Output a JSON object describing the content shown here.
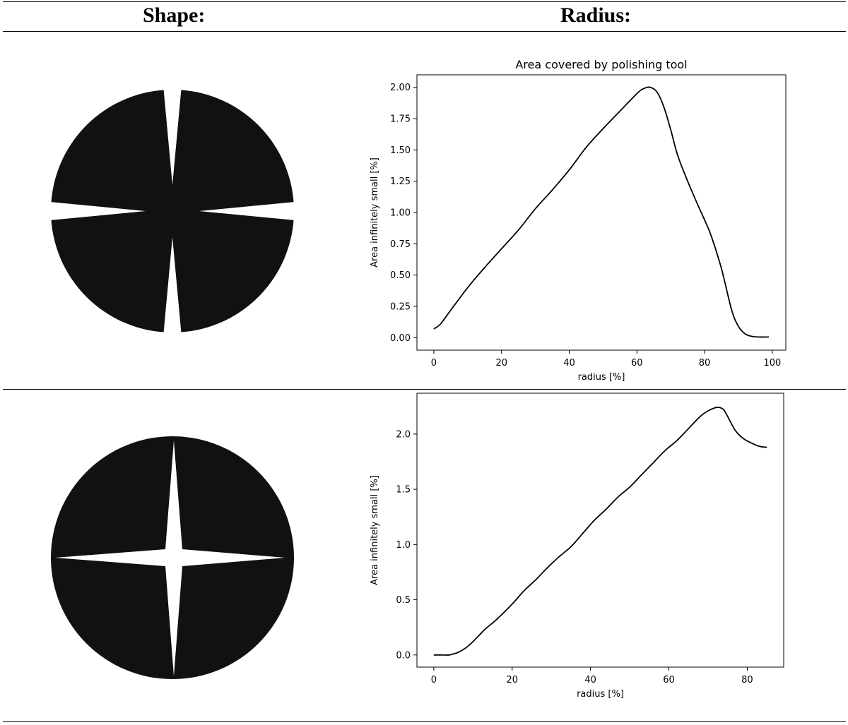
{
  "header": {
    "shape_label": "Shape:",
    "radius_label": "Radius:"
  },
  "rows": [
    {
      "shape_icon": "cross-slot-polishing-tool-icon"
    },
    {
      "shape_icon": "four-point-star-slot-polishing-tool-icon"
    }
  ],
  "chart_data": [
    {
      "type": "line",
      "title": "Area covered by polishing tool",
      "xlabel": "radius [%]",
      "ylabel": "Area infinitely small [%]",
      "xlim": [
        -5,
        104
      ],
      "ylim": [
        -0.1,
        2.1
      ],
      "xticks": [
        0,
        20,
        40,
        60,
        80,
        100
      ],
      "yticks": [
        0.0,
        0.25,
        0.5,
        0.75,
        1.0,
        1.25,
        1.5,
        1.75,
        2.0
      ],
      "ytick_labels": [
        "0.00",
        "0.25",
        "0.50",
        "0.75",
        "1.00",
        "1.25",
        "1.50",
        "1.75",
        "2.00"
      ],
      "grid": false,
      "line_color": "#000000",
      "x": [
        0,
        2,
        5,
        10,
        15,
        20,
        25,
        30,
        35,
        40,
        45,
        50,
        55,
        60,
        62,
        64,
        66,
        68,
        70,
        72,
        75,
        78,
        80,
        82,
        85,
        88,
        90,
        92,
        94,
        96,
        98,
        99
      ],
      "y": [
        0.07,
        0.11,
        0.22,
        0.4,
        0.56,
        0.71,
        0.86,
        1.03,
        1.18,
        1.34,
        1.52,
        1.67,
        1.81,
        1.95,
        1.99,
        2.0,
        1.96,
        1.84,
        1.66,
        1.46,
        1.25,
        1.06,
        0.94,
        0.81,
        0.55,
        0.22,
        0.09,
        0.03,
        0.01,
        0.005,
        0.005,
        0.005
      ]
    },
    {
      "type": "line",
      "title": "",
      "xlabel": "radius [%]",
      "ylabel": "Area infinitely small [%]",
      "xlim": [
        -4.3,
        89.3
      ],
      "ylim": [
        -0.11,
        2.37
      ],
      "xticks": [
        0,
        20,
        40,
        60,
        80
      ],
      "yticks": [
        0.0,
        0.5,
        1.0,
        1.5,
        2.0
      ],
      "ytick_labels": [
        "0.0",
        "0.5",
        "1.0",
        "1.5",
        "2.0"
      ],
      "grid": false,
      "line_color": "#000000",
      "x": [
        0,
        2,
        4,
        5,
        6,
        8,
        10,
        13,
        16,
        20,
        23,
        26,
        29,
        32,
        35,
        38,
        41,
        44,
        47,
        50,
        53,
        56,
        59,
        62,
        65,
        68,
        70,
        72,
        73,
        74,
        75,
        77,
        79,
        81,
        83,
        85
      ],
      "y": [
        0.0,
        0.0,
        0.0,
        0.01,
        0.02,
        0.06,
        0.12,
        0.23,
        0.32,
        0.46,
        0.58,
        0.68,
        0.79,
        0.89,
        0.98,
        1.1,
        1.22,
        1.32,
        1.43,
        1.52,
        1.63,
        1.74,
        1.85,
        1.94,
        2.05,
        2.16,
        2.21,
        2.24,
        2.24,
        2.22,
        2.16,
        2.03,
        1.96,
        1.92,
        1.89,
        1.88
      ]
    }
  ]
}
